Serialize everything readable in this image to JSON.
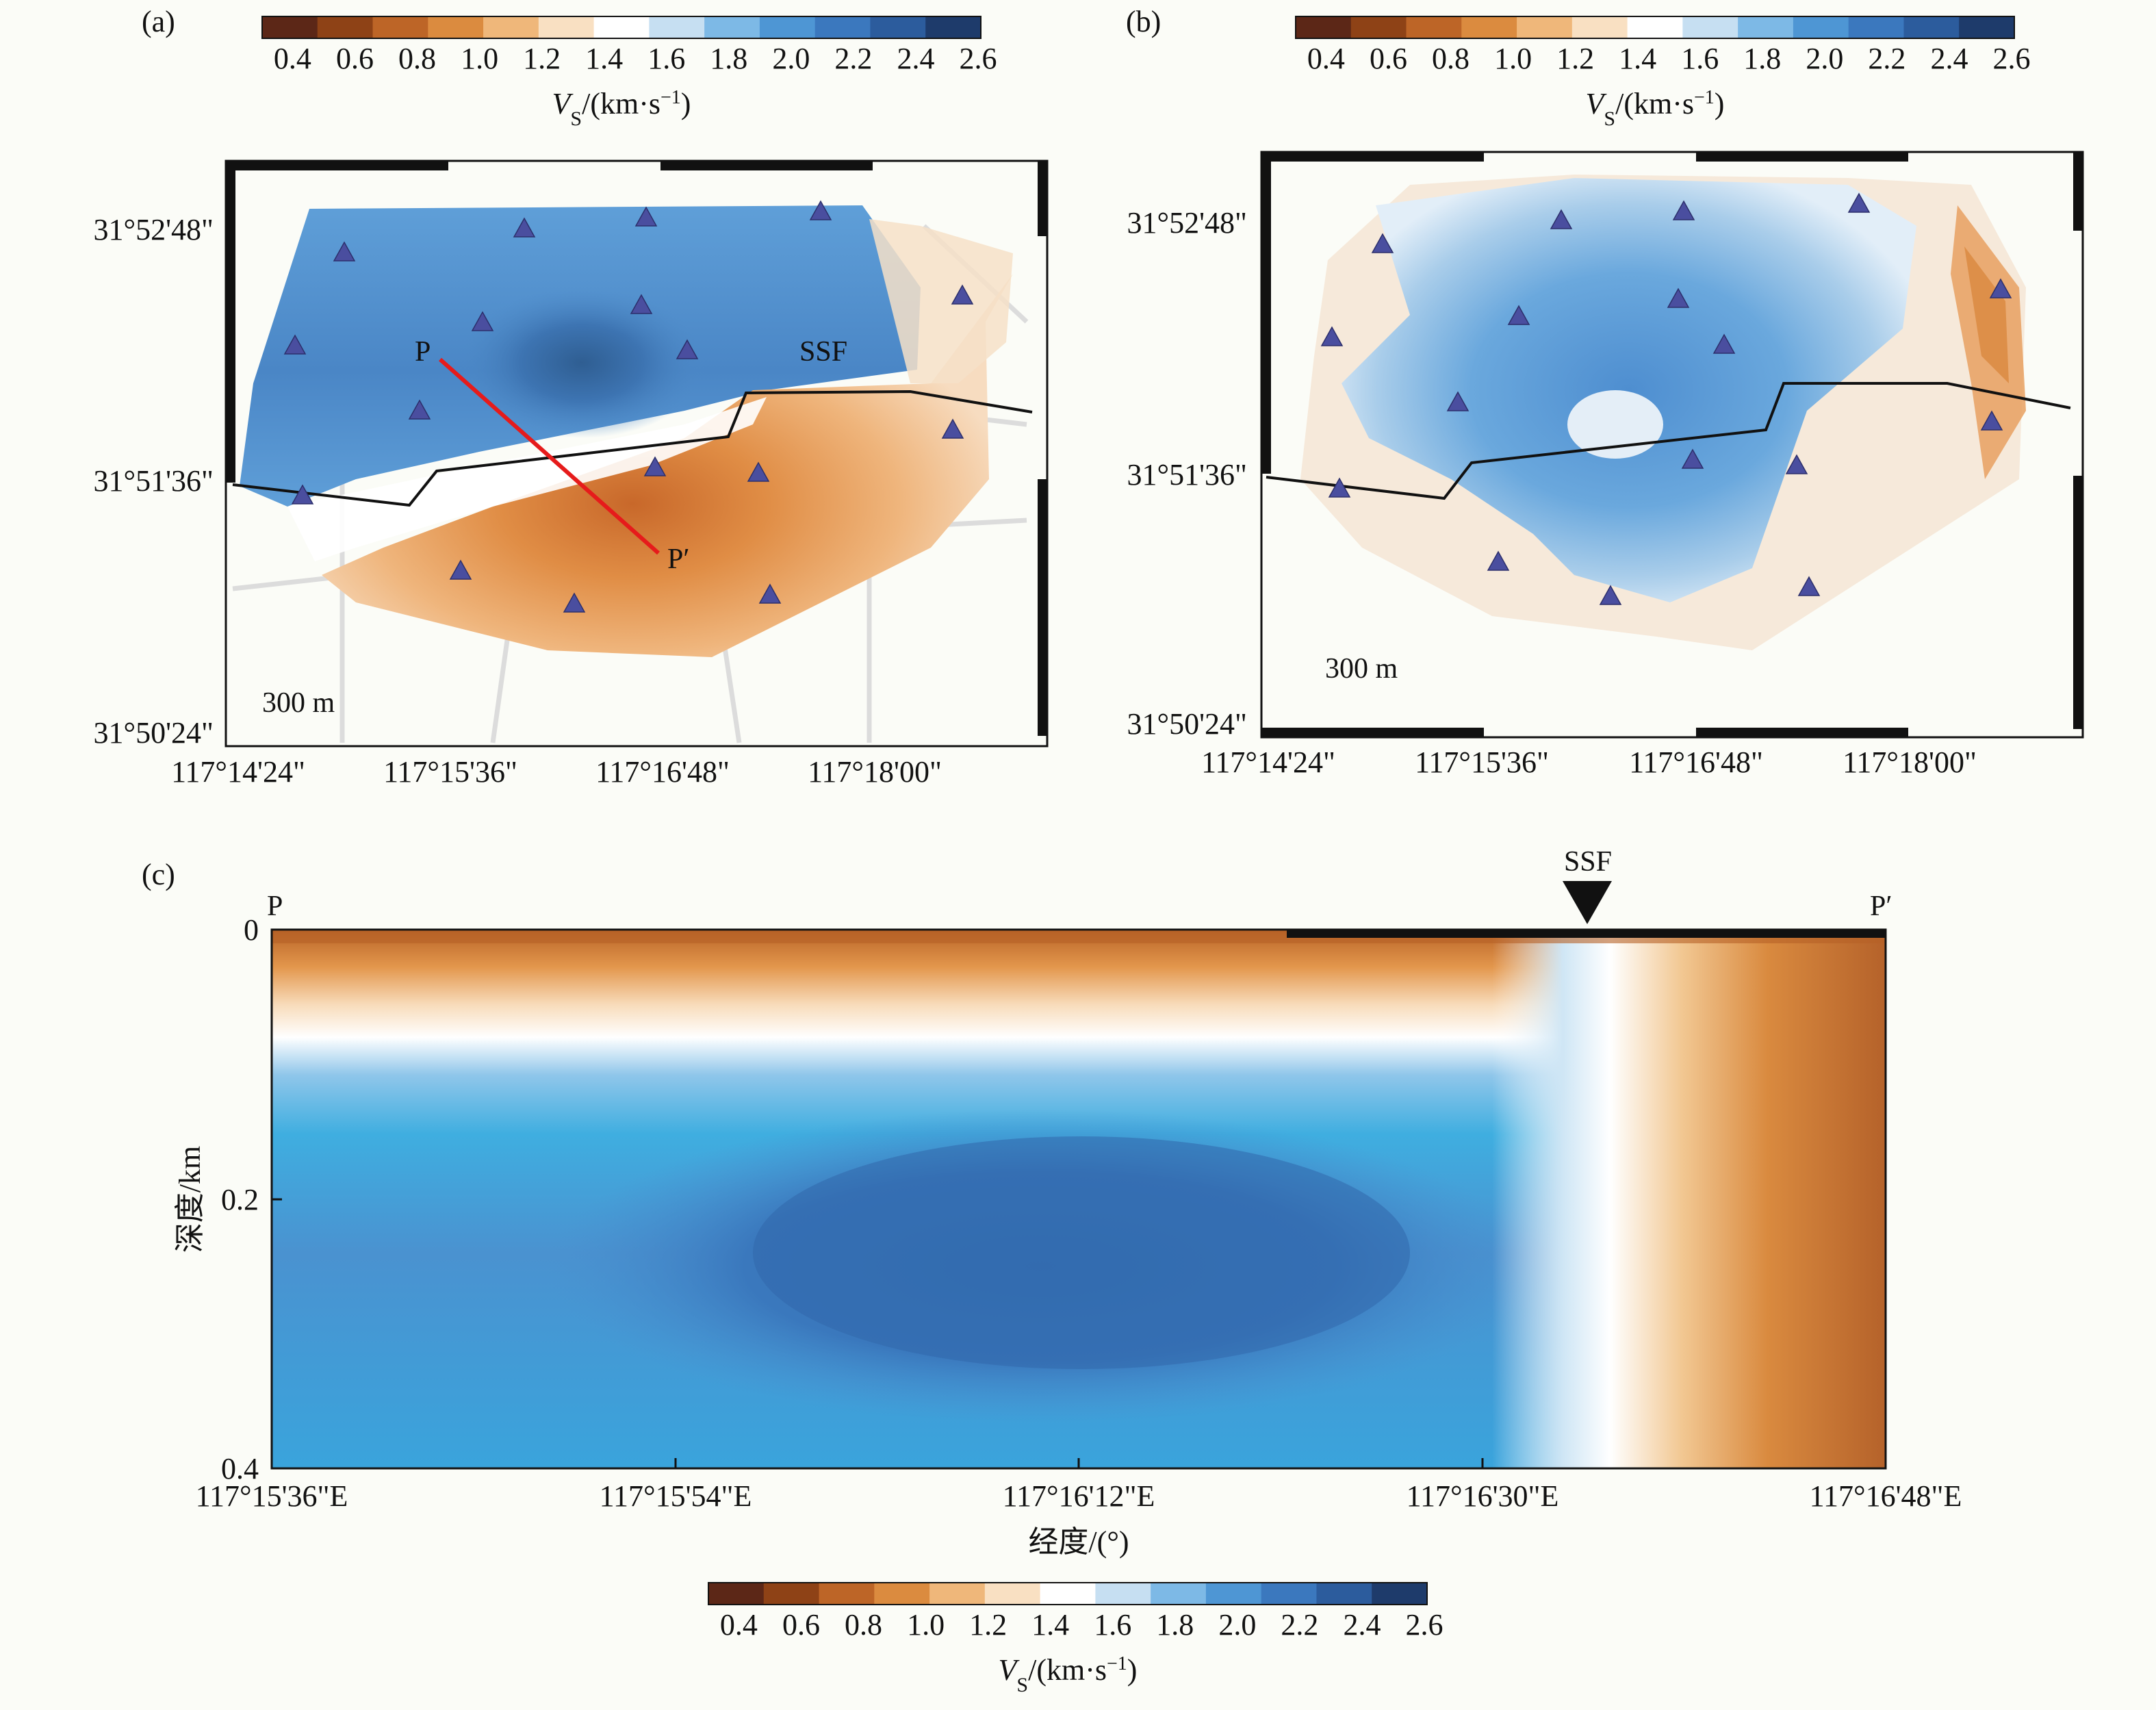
{
  "colors": {
    "background": "#fbfcf7",
    "section_line": "#e61b1b",
    "station": "#4a4e9f",
    "fault": "#111111"
  },
  "colorbar": {
    "ticks": [
      "0.4",
      "0.6",
      "0.8",
      "1.0",
      "1.2",
      "1.4",
      "1.6",
      "1.8",
      "2.0",
      "2.2",
      "2.4",
      "2.6"
    ],
    "label_main": "V",
    "label_sub": "S",
    "label_rest": "/(km·s",
    "label_sup": "−1",
    "label_close": ")",
    "stops": [
      "#5c2717",
      "#8e4216",
      "#bd6527",
      "#db8b3f",
      "#efb77a",
      "#f9e0c2",
      "#ffffff",
      "#c6dff2",
      "#7db9e6",
      "#4e96d4",
      "#3b78be",
      "#2c5c9d",
      "#1e3b6b"
    ]
  },
  "chart_data": [
    {
      "type": "heatmap",
      "panel": "(a)",
      "depth_label": "300 m",
      "x_ticks": [
        "117°14'24\"",
        "117°15'36\"",
        "117°16'48\"",
        "117°18'00\""
      ],
      "y_ticks": [
        "31°52'48\"",
        "31°51'36\"",
        "31°50'24\""
      ],
      "annotations": [
        "P",
        "SSF",
        "P′"
      ],
      "stations": 19,
      "velocity_range_km_s": [
        0.4,
        2.6
      ]
    },
    {
      "type": "heatmap",
      "panel": "(b)",
      "depth_label": "300 m",
      "x_ticks": [
        "117°14'24\"",
        "117°15'36\"",
        "117°16'48\"",
        "117°18'00\""
      ],
      "y_ticks": [
        "31°52'48\"",
        "31°51'36\"",
        "31°50'24\""
      ],
      "stations": 19,
      "velocity_range_km_s": [
        0.4,
        2.6
      ]
    },
    {
      "type": "heatmap",
      "panel": "(c)",
      "xlabel": "经度/(°)",
      "ylabel": "深度/km",
      "x_ticks": [
        "117°15'36\"E",
        "117°15'54\"E",
        "117°16'12\"E",
        "117°16'30\"E",
        "117°16'48\"E"
      ],
      "y_ticks": [
        "0",
        "0.2",
        "0.4"
      ],
      "ylim": [
        0,
        0.4
      ],
      "start_label": "P",
      "end_label": "P′",
      "fault_label": "SSF",
      "velocity_range_km_s": [
        0.4,
        2.6
      ]
    }
  ]
}
